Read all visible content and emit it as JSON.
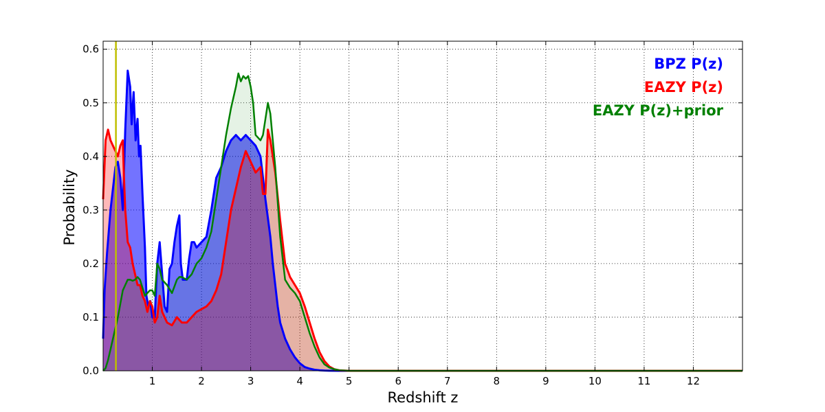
{
  "chart_data": {
    "type": "area",
    "xlabel": "Redshift z",
    "ylabel": "Probability",
    "xlim": [
      0,
      13
    ],
    "ylim": [
      0,
      0.615
    ],
    "grid": true,
    "legend_placement": "top-right",
    "x_ticks": [
      1,
      2,
      3,
      4,
      5,
      6,
      7,
      8,
      9,
      10,
      11,
      12
    ],
    "y_ticks": [
      0.0,
      0.1,
      0.2,
      0.3,
      0.4,
      0.5,
      0.6
    ],
    "x_tick_labels": [
      "1",
      "2",
      "3",
      "4",
      "5",
      "6",
      "7",
      "8",
      "9",
      "10",
      "11",
      "12"
    ],
    "y_tick_labels": [
      "0.0",
      "0.1",
      "0.2",
      "0.3",
      "0.4",
      "0.5",
      "0.6"
    ],
    "reference_line": {
      "x": 0.26,
      "color": "#bfbf00"
    },
    "series": [
      {
        "name": "BPZ P(z)",
        "color": "#0000ff",
        "fill": "#0000ff",
        "fill_opacity": 0.55,
        "stroke_width": 3,
        "x": [
          0,
          0.03,
          0.08,
          0.15,
          0.25,
          0.3,
          0.35,
          0.4,
          0.45,
          0.5,
          0.55,
          0.58,
          0.62,
          0.66,
          0.7,
          0.73,
          0.76,
          0.8,
          0.85,
          0.88,
          0.92,
          0.96,
          1.0,
          1.05,
          1.1,
          1.15,
          1.2,
          1.25,
          1.3,
          1.35,
          1.4,
          1.45,
          1.5,
          1.55,
          1.58,
          1.62,
          1.7,
          1.75,
          1.8,
          1.85,
          1.9,
          2.0,
          2.1,
          2.2,
          2.25,
          2.3,
          2.4,
          2.5,
          2.6,
          2.7,
          2.8,
          2.9,
          3.0,
          3.1,
          3.2,
          3.3,
          3.4,
          3.45,
          3.5,
          3.55,
          3.6,
          3.7,
          3.8,
          3.9,
          4.0,
          4.1,
          4.2,
          4.3,
          4.4,
          4.5,
          4.6,
          4.8,
          13
        ],
        "values": [
          0.06,
          0.15,
          0.22,
          0.3,
          0.38,
          0.39,
          0.36,
          0.3,
          0.45,
          0.56,
          0.53,
          0.46,
          0.52,
          0.43,
          0.47,
          0.4,
          0.42,
          0.33,
          0.23,
          0.14,
          0.12,
          0.13,
          0.1,
          0.1,
          0.2,
          0.24,
          0.18,
          0.12,
          0.11,
          0.19,
          0.2,
          0.24,
          0.27,
          0.29,
          0.2,
          0.17,
          0.17,
          0.21,
          0.24,
          0.24,
          0.23,
          0.24,
          0.25,
          0.3,
          0.33,
          0.36,
          0.38,
          0.41,
          0.43,
          0.44,
          0.43,
          0.44,
          0.43,
          0.42,
          0.4,
          0.32,
          0.25,
          0.2,
          0.16,
          0.12,
          0.09,
          0.06,
          0.04,
          0.025,
          0.014,
          0.007,
          0.004,
          0.002,
          0.001,
          0.0005,
          0.0002,
          0.0,
          0.0
        ]
      },
      {
        "name": "EAZY P(z)",
        "color": "#ff0000",
        "fill": "#ff0000",
        "fill_opacity": 0.28,
        "stroke_width": 3,
        "x": [
          0,
          0.05,
          0.1,
          0.15,
          0.2,
          0.25,
          0.3,
          0.35,
          0.4,
          0.42,
          0.45,
          0.5,
          0.55,
          0.6,
          0.65,
          0.7,
          0.75,
          0.8,
          0.85,
          0.9,
          0.95,
          1.0,
          1.05,
          1.1,
          1.15,
          1.2,
          1.3,
          1.4,
          1.5,
          1.6,
          1.7,
          1.8,
          1.9,
          2.0,
          2.1,
          2.2,
          2.3,
          2.4,
          2.5,
          2.6,
          2.7,
          2.8,
          2.9,
          3.0,
          3.1,
          3.2,
          3.25,
          3.3,
          3.35,
          3.4,
          3.5,
          3.6,
          3.7,
          3.8,
          3.9,
          4.0,
          4.1,
          4.2,
          4.3,
          4.4,
          4.5,
          4.6,
          4.7,
          4.8,
          5.0,
          13
        ],
        "values": [
          0.32,
          0.43,
          0.45,
          0.43,
          0.42,
          0.41,
          0.4,
          0.42,
          0.43,
          0.37,
          0.3,
          0.24,
          0.23,
          0.2,
          0.18,
          0.16,
          0.16,
          0.14,
          0.13,
          0.11,
          0.13,
          0.12,
          0.09,
          0.1,
          0.14,
          0.11,
          0.09,
          0.085,
          0.1,
          0.09,
          0.09,
          0.1,
          0.11,
          0.115,
          0.12,
          0.13,
          0.15,
          0.18,
          0.24,
          0.3,
          0.34,
          0.38,
          0.41,
          0.39,
          0.37,
          0.38,
          0.33,
          0.33,
          0.45,
          0.43,
          0.37,
          0.28,
          0.2,
          0.175,
          0.16,
          0.145,
          0.12,
          0.09,
          0.06,
          0.035,
          0.018,
          0.008,
          0.003,
          0.001,
          0.0,
          0.0
        ]
      },
      {
        "name": "EAZY P(z)+prior",
        "color": "#008000",
        "fill": "#008000",
        "fill_opacity": 0.1,
        "stroke_width": 2.5,
        "x": [
          0,
          0.05,
          0.1,
          0.15,
          0.2,
          0.25,
          0.3,
          0.35,
          0.4,
          0.45,
          0.5,
          0.55,
          0.6,
          0.65,
          0.7,
          0.75,
          0.8,
          0.85,
          0.9,
          0.95,
          1.0,
          1.05,
          1.1,
          1.15,
          1.2,
          1.3,
          1.4,
          1.5,
          1.55,
          1.6,
          1.7,
          1.8,
          1.9,
          2.0,
          2.1,
          2.2,
          2.3,
          2.4,
          2.5,
          2.6,
          2.7,
          2.75,
          2.8,
          2.85,
          2.9,
          2.95,
          3.0,
          3.05,
          3.1,
          3.2,
          3.25,
          3.3,
          3.35,
          3.4,
          3.5,
          3.6,
          3.7,
          3.8,
          3.9,
          4.0,
          4.1,
          4.2,
          4.3,
          4.4,
          4.5,
          4.6,
          4.7,
          4.8,
          5.0,
          13
        ],
        "values": [
          0.0,
          0.005,
          0.02,
          0.04,
          0.06,
          0.08,
          0.1,
          0.125,
          0.15,
          0.16,
          0.17,
          0.17,
          0.168,
          0.17,
          0.175,
          0.17,
          0.155,
          0.14,
          0.145,
          0.15,
          0.15,
          0.14,
          0.2,
          0.19,
          0.17,
          0.16,
          0.145,
          0.17,
          0.175,
          0.175,
          0.17,
          0.18,
          0.2,
          0.21,
          0.23,
          0.26,
          0.32,
          0.38,
          0.44,
          0.49,
          0.53,
          0.555,
          0.54,
          0.55,
          0.545,
          0.55,
          0.53,
          0.5,
          0.44,
          0.43,
          0.44,
          0.47,
          0.5,
          0.48,
          0.38,
          0.25,
          0.17,
          0.155,
          0.145,
          0.13,
          0.1,
          0.07,
          0.045,
          0.025,
          0.012,
          0.006,
          0.003,
          0.001,
          0.0,
          0.0
        ]
      }
    ]
  }
}
